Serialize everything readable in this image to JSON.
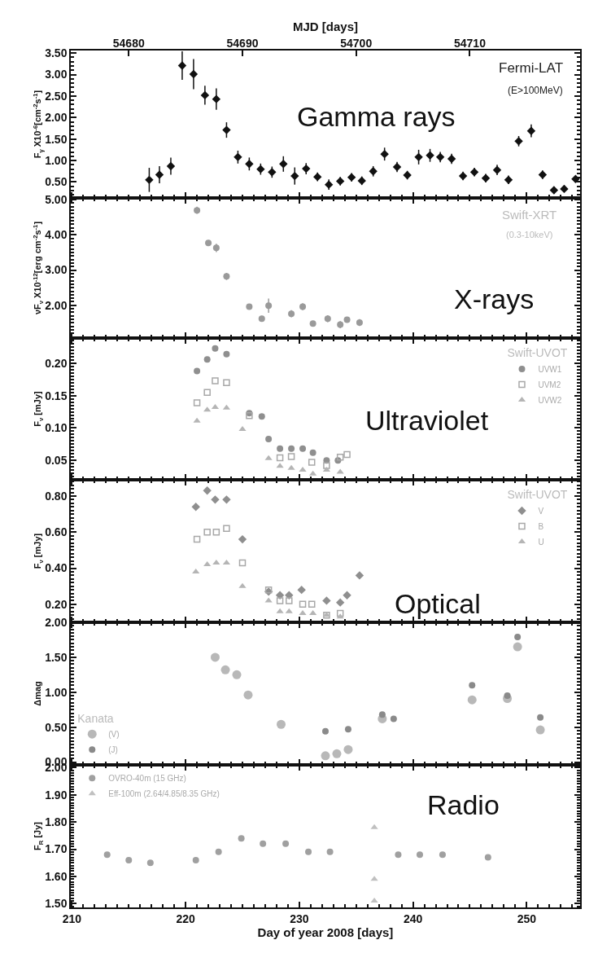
{
  "chart_data": [
    {
      "type": "scatter",
      "ylabel": "F$_{γ}$ X10$^{-6}$[cm$^{-2}$s$^{-1}$]",
      "x2label": "MJD [days]",
      "tick_labels": "y",
      "marker": "diamond",
      "annotations": [
        "Gamma rays",
        "Fermi-LAT",
        "(E>100MeV)"
      ],
      "xlim": [
        209.9,
        254.7
      ],
      "xticks": [
        210,
        220,
        230,
        240,
        250
      ],
      "x2lim": [
        54674.9,
        54719.7
      ],
      "x2ticks": [
        54680,
        54690,
        54700,
        54710
      ],
      "ylim": [
        0.13,
        3.56
      ],
      "yticks": [
        {
          "value": 0.5,
          "label": "0.50"
        },
        {
          "value": 1,
          "label": "1.00"
        },
        {
          "value": 1.5,
          "label": "1.50"
        },
        {
          "value": 2,
          "label": "2.00"
        },
        {
          "value": 2.5,
          "label": "2.50"
        },
        {
          "value": 3,
          "label": "3.00"
        },
        {
          "value": 3.5,
          "label": "3.50"
        }
      ],
      "series": [
        {
          "color": "#111111",
          "x": [
            216.8,
            217.7,
            218.7,
            219.7,
            220.7,
            221.7,
            222.7,
            223.6,
            224.6,
            225.6,
            226.6,
            227.6,
            228.6,
            229.6,
            230.6,
            231.6,
            232.6,
            233.6,
            234.6,
            235.5,
            236.5,
            237.5,
            238.6,
            239.5,
            240.5,
            241.5,
            242.4,
            243.4,
            244.4,
            245.4,
            246.4,
            247.4,
            248.4,
            249.3,
            250.4,
            251.4,
            252.4,
            253.3,
            254.3
          ],
          "values": [
            0.55,
            0.67,
            0.87,
            3.21,
            3.01,
            2.52,
            2.43,
            1.71,
            1.08,
            0.92,
            0.8,
            0.73,
            0.92,
            0.64,
            0.81,
            0.62,
            0.44,
            0.52,
            0.61,
            0.53,
            0.75,
            1.15,
            0.85,
            0.66,
            1.08,
            1.12,
            1.08,
            1.04,
            0.64,
            0.73,
            0.59,
            0.78,
            0.55,
            1.45,
            1.69,
            0.67,
            0.31,
            0.34,
            0.57
          ],
          "errors": [
            0.28,
            0.2,
            0.2,
            0.33,
            0.35,
            0.22,
            0.25,
            0.18,
            0.15,
            0.15,
            0.13,
            0.13,
            0.18,
            0.2,
            0.13,
            0.1,
            0.12,
            0.1,
            0.1,
            0.1,
            0.12,
            0.15,
            0.12,
            0.1,
            0.17,
            0.15,
            0.12,
            0.12,
            0.1,
            0.1,
            0.1,
            0.12,
            0.1,
            0.12,
            0.15,
            0.1,
            0.08,
            0.08,
            null
          ]
        }
      ]
    },
    {
      "type": "scatter",
      "ylabel": "νF$_{ν}$ X10$^{-12}$[erg cm$^{-2}$s$^{-1}$]",
      "tick_labels": "y",
      "marker": "circle",
      "annotations": [
        "X-rays",
        "Swift-XRT",
        "(0.3-10keV)"
      ],
      "xlim": [
        209.9,
        254.7
      ],
      "xticks": [
        210,
        220,
        230,
        240,
        250
      ],
      "ylim": [
        1.07,
        5.05
      ],
      "yticks": [
        {
          "value": 2,
          "label": "2.00"
        },
        {
          "value": 3,
          "label": "3.00"
        },
        {
          "value": 4,
          "label": "4.00"
        },
        {
          "value": 5,
          "label": "5.00"
        }
      ],
      "series": [
        {
          "color": "#9a9a9a",
          "x": [
            221.0,
            222.0,
            222.7,
            223.6,
            225.6,
            226.7,
            227.3,
            229.3,
            230.3,
            231.2,
            232.5,
            233.6,
            234.2,
            235.3
          ],
          "values": [
            4.7,
            3.77,
            3.63,
            2.82,
            1.96,
            1.62,
            1.99,
            1.76,
            1.96,
            1.48,
            1.62,
            1.45,
            1.59,
            1.51
          ],
          "errors": [
            0.1,
            0.08,
            0.12,
            0.1,
            0.05,
            0.08,
            0.2,
            0.1,
            0.1,
            0.08,
            0.1,
            0.1,
            0.08,
            0.1
          ]
        }
      ]
    },
    {
      "type": "scatter",
      "ylabel": "F$_{ν}$ [mJy]",
      "tick_labels": "y",
      "legend": "top right",
      "legend_title": "Swift-UVOT",
      "annotations": [
        "Ultraviolet"
      ],
      "xlim": [
        209.9,
        254.7
      ],
      "xticks": [
        210,
        220,
        230,
        240,
        250
      ],
      "ylim": [
        0.02,
        0.239
      ],
      "yticks": [
        {
          "value": 0.05,
          "label": "0.05"
        },
        {
          "value": 0.1,
          "label": "0.10"
        },
        {
          "value": 0.15,
          "label": "0.15"
        },
        {
          "value": 0.2,
          "label": "0.20"
        }
      ],
      "series": [
        {
          "name": "UVW1",
          "marker": "circle",
          "color": "#8f8f8f",
          "x": [
            221.0,
            221.9,
            222.6,
            223.6,
            225.6,
            226.7,
            227.3,
            228.3,
            229.3,
            230.3,
            231.2,
            232.4,
            233.4
          ],
          "values": [
            0.188,
            0.206,
            0.223,
            0.214,
            0.123,
            0.118,
            0.083,
            0.068,
            0.068,
            0.068,
            0.062,
            0.05,
            0.05
          ]
        },
        {
          "name": "UVM2",
          "marker": "square",
          "color": "#a8a8a8",
          "x": [
            221.0,
            221.9,
            222.6,
            223.6,
            225.6,
            228.3,
            229.3,
            231.1,
            232.4,
            233.6,
            234.2
          ],
          "values": [
            0.139,
            0.155,
            0.173,
            0.17,
            0.119,
            0.054,
            0.056,
            0.047,
            0.042,
            0.055,
            0.059
          ]
        },
        {
          "name": "UVW2",
          "marker": "triangle",
          "color": "#b5b5b5",
          "x": [
            221.0,
            221.9,
            222.6,
            223.6,
            225.0,
            227.3,
            228.3,
            229.3,
            230.3,
            231.2,
            232.4,
            233.6
          ],
          "values": [
            0.111,
            0.128,
            0.132,
            0.131,
            0.098,
            0.053,
            0.041,
            0.038,
            0.035,
            0.029,
            0.035,
            0.032
          ]
        }
      ]
    },
    {
      "type": "scatter",
      "ylabel": "F$_{ν}$ [mJy]",
      "tick_labels": "y",
      "legend": "top right",
      "legend_title": "Swift-UVOT",
      "annotations": [
        "Optical"
      ],
      "xlim": [
        209.9,
        254.7
      ],
      "xticks": [
        210,
        220,
        230,
        240,
        250
      ],
      "ylim": [
        0.1,
        0.89
      ],
      "yticks": [
        {
          "value": 0.2,
          "label": "0.20"
        },
        {
          "value": 0.4,
          "label": "0.40"
        },
        {
          "value": 0.6,
          "label": "0.60"
        },
        {
          "value": 0.8,
          "label": "0.80"
        }
      ],
      "series": [
        {
          "name": "V",
          "marker": "diamond",
          "color": "#8f8f8f",
          "x": [
            220.9,
            221.9,
            222.6,
            223.6,
            225.0,
            227.3,
            228.3,
            229.1,
            230.2,
            232.4,
            233.6,
            234.2,
            235.3
          ],
          "values": [
            0.74,
            0.83,
            0.78,
            0.78,
            0.56,
            0.27,
            0.25,
            0.25,
            0.28,
            0.22,
            0.21,
            0.25,
            0.36
          ]
        },
        {
          "name": "B",
          "marker": "square",
          "color": "#a8a8a8",
          "x": [
            221.0,
            221.9,
            222.7,
            223.6,
            225.0,
            227.3,
            228.3,
            229.1,
            230.3,
            231.1,
            232.4,
            233.6
          ],
          "values": [
            0.56,
            0.6,
            0.6,
            0.62,
            0.43,
            0.28,
            0.22,
            0.22,
            0.2,
            0.2,
            0.14,
            0.15
          ]
        },
        {
          "name": "U",
          "marker": "triangle",
          "color": "#b5b5b5",
          "x": [
            220.9,
            221.9,
            222.7,
            223.6,
            225.0,
            227.3,
            228.3,
            229.1,
            230.3,
            231.2,
            232.4,
            233.6
          ],
          "values": [
            0.38,
            0.42,
            0.43,
            0.43,
            0.3,
            0.22,
            0.16,
            0.16,
            0.15,
            0.15,
            0.14,
            0.13
          ]
        }
      ]
    },
    {
      "type": "scatter",
      "ylabel": "Δmag",
      "tick_labels": "y",
      "legend": "bottom left",
      "legend_title": "Kanata",
      "marker": "circle",
      "xlim": [
        209.9,
        254.7
      ],
      "xticks": [
        210,
        220,
        230,
        240,
        250
      ],
      "ylim": [
        -0.04,
        2
      ],
      "yticks": [
        {
          "value": 0,
          "label": "0.00"
        },
        {
          "value": 0.5,
          "label": "0.50"
        },
        {
          "value": 1,
          "label": "1.00"
        },
        {
          "value": 1.5,
          "label": "1.50"
        },
        {
          "value": 2,
          "label": "2.00"
        }
      ],
      "series": [
        {
          "name": "(V)",
          "color": "#b8b8b8",
          "x": [
            222.6,
            223.5,
            224.5,
            225.5,
            228.4,
            232.3,
            233.3,
            234.3,
            237.3,
            245.2,
            248.3,
            249.2,
            251.2
          ],
          "values": [
            1.5,
            1.32,
            1.25,
            0.96,
            0.54,
            0.09,
            0.12,
            0.18,
            0.62,
            0.89,
            0.91,
            1.65,
            0.46
          ]
        },
        {
          "name": "(J)",
          "color": "#8a8a8a",
          "x": [
            232.3,
            234.3,
            237.3,
            238.3,
            245.2,
            248.3,
            249.2,
            251.2
          ],
          "values": [
            0.44,
            0.47,
            0.68,
            0.62,
            1.1,
            0.95,
            1.79,
            0.64
          ]
        }
      ]
    },
    {
      "type": "scatter",
      "ylabel": "F$_{R}$ [Jy]",
      "xlabel": "Day of year 2008 [days]",
      "legend": "top left",
      "annotations": [
        "Radio"
      ],
      "xlim": [
        209.9,
        254.7
      ],
      "xticks": [
        210,
        220,
        230,
        240,
        250
      ],
      "ylim": [
        1.486,
        2.01
      ],
      "yticks": [
        {
          "value": 1.5,
          "label": "1.50"
        },
        {
          "value": 1.6,
          "label": "1.60"
        },
        {
          "value": 1.7,
          "label": "1.70"
        },
        {
          "value": 1.8,
          "label": "1.80"
        },
        {
          "value": 1.9,
          "label": "1.90"
        },
        {
          "value": 2,
          "label": "2.00"
        }
      ],
      "series": [
        {
          "name": "OVRO-40m (15 GHz)",
          "marker": "circle",
          "color": "#a0a0a0",
          "x": [
            213.1,
            215.0,
            216.9,
            220.9,
            222.9,
            224.9,
            226.8,
            228.8,
            230.8,
            232.7,
            238.7,
            240.6,
            242.6,
            246.6
          ],
          "values": [
            1.68,
            1.66,
            1.65,
            1.66,
            1.69,
            1.74,
            1.72,
            1.72,
            1.69,
            1.69,
            1.68,
            1.68,
            1.68,
            1.67
          ]
        },
        {
          "name": "Eff-100m (2.64/4.85/8.35 GHz)",
          "marker": "triangle",
          "color": "#c0c0c0",
          "x": [
            236.6,
            236.6,
            236.6
          ],
          "values": [
            1.78,
            1.59,
            1.51
          ]
        }
      ]
    }
  ]
}
